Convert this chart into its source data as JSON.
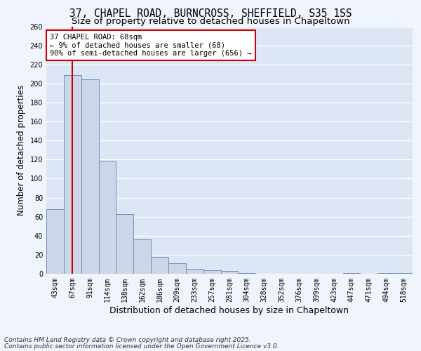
{
  "title_line1": "37, CHAPEL ROAD, BURNCROSS, SHEFFIELD, S35 1SS",
  "title_line2": "Size of property relative to detached houses in Chapeltown",
  "xlabel": "Distribution of detached houses by size in Chapeltown",
  "ylabel": "Number of detached properties",
  "bar_labels": [
    "43sqm",
    "67sqm",
    "91sqm",
    "114sqm",
    "138sqm",
    "162sqm",
    "186sqm",
    "209sqm",
    "233sqm",
    "257sqm",
    "281sqm",
    "304sqm",
    "328sqm",
    "352sqm",
    "376sqm",
    "399sqm",
    "423sqm",
    "447sqm",
    "471sqm",
    "494sqm",
    "518sqm"
  ],
  "bar_values": [
    68,
    209,
    204,
    119,
    63,
    36,
    18,
    11,
    5,
    4,
    3,
    1,
    0,
    0,
    0,
    0,
    0,
    1,
    0,
    1,
    1
  ],
  "bar_color": "#ccd6e8",
  "bar_edge_color": "#7090b8",
  "vline_x": 1,
  "vline_color": "#cc0000",
  "annotation_text": "37 CHAPEL ROAD: 68sqm\n← 9% of detached houses are smaller (68)\n90% of semi-detached houses are larger (656) →",
  "annotation_box_color": "#ffffff",
  "annotation_box_edge": "#cc0000",
  "bg_color": "#dde6f4",
  "grid_color": "#ffffff",
  "fig_bg_color": "#f0f4fc",
  "ylim": [
    0,
    260
  ],
  "yticks": [
    0,
    20,
    40,
    60,
    80,
    100,
    120,
    140,
    160,
    180,
    200,
    220,
    240,
    260
  ],
  "footer_line1": "Contains HM Land Registry data © Crown copyright and database right 2025.",
  "footer_line2": "Contains public sector information licensed under the Open Government Licence v3.0.",
  "title_fontsize": 10.5,
  "subtitle_fontsize": 9.5,
  "xlabel_fontsize": 9,
  "ylabel_fontsize": 8.5,
  "tick_fontsize": 7,
  "annot_fontsize": 7.5,
  "footer_fontsize": 6.5
}
